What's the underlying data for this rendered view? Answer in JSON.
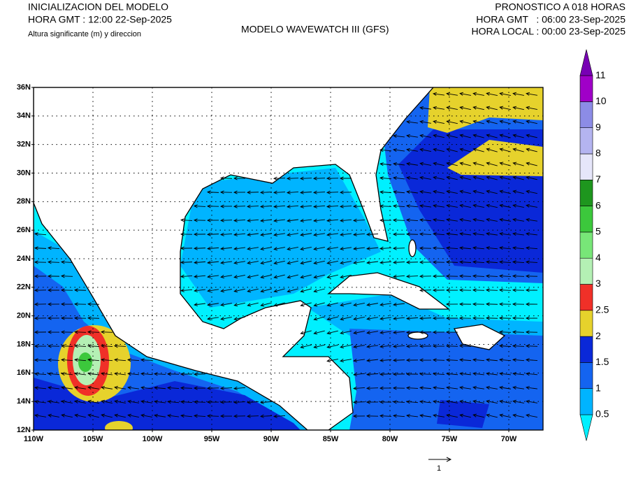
{
  "header": {
    "left": [
      "INICIALIZACION DEL MODELO",
      "HORA GMT : 12:00 22-Sep-2025",
      "Altura significante (m) y direccion"
    ],
    "center": "MODELO WAVEWATCH III (GFS)",
    "right": [
      "PRONOSTICO A 018 HORAS",
      "HORA GMT   : 06:00 23-Sep-2025",
      "HORA LOCAL : 00:00 23-Sep-2025"
    ]
  },
  "map": {
    "lat_labels": [
      "36N",
      "34N",
      "32N",
      "30N",
      "28N",
      "26N",
      "24N",
      "22N",
      "20N",
      "18N",
      "16N",
      "14N",
      "12N"
    ],
    "lon_labels": [
      "110W",
      "105W",
      "100W",
      "95W",
      "90W",
      "85W",
      "80W",
      "75W",
      "70W"
    ],
    "reference_arrow_label": "1"
  },
  "colorbar": {
    "labels": [
      0.5,
      1,
      1.5,
      2,
      2.5,
      3,
      4,
      5,
      6,
      7,
      8,
      9,
      10,
      11
    ],
    "colors": [
      "#00f0ff",
      "#00b4ff",
      "#1464f0",
      "#0a28d8",
      "#e6d22c",
      "#f03028",
      "#b4f0b4",
      "#78e678",
      "#3cc83c",
      "#1e961e",
      "#e6e6fa",
      "#b4b4f0",
      "#8c8ce6",
      "#a000c8",
      "#7800b4"
    ]
  }
}
